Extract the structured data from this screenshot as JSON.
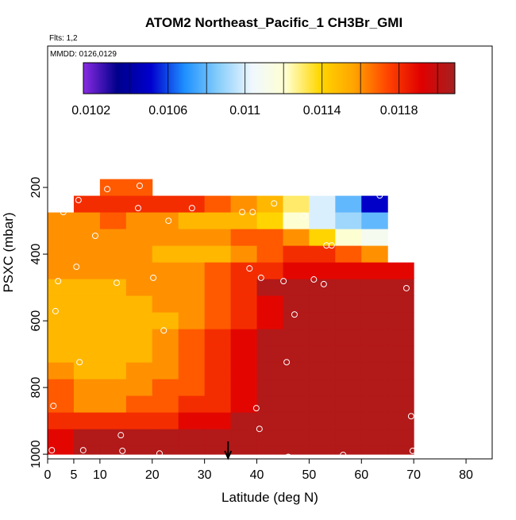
{
  "chart_data": {
    "type": "curtain",
    "title": "ATOM2 Northeast_Pacific_1 CH3Br_GMI",
    "flights": "Flts: 1,2",
    "dates": "MMDD: 0126,0129",
    "xlabel": "Latitude (deg N)",
    "ylabel": "PSXC (mbar)",
    "xlim": [
      0,
      85
    ],
    "xticks": [
      0,
      5,
      10,
      20,
      30,
      40,
      50,
      60,
      70,
      80
    ],
    "ylim": [
      1014,
      -224
    ],
    "yticks": [
      200,
      400,
      600,
      800,
      1000
    ],
    "clim": [
      0.01016,
      0.01209
    ],
    "cticks": [
      0.0102,
      0.0106,
      0.011,
      0.0114,
      0.0118
    ],
    "cbreaks": [
      0.0104,
      0.0106,
      0.0108,
      0.011,
      0.0112,
      0.0114,
      0.0116,
      0.0118,
      0.012
    ],
    "colors": [
      "#8a2be2",
      "#00008b",
      "#0000cd",
      "#1e90ff",
      "#87cefa",
      "#f0f8ff",
      "#ffffd0",
      "#ffd700",
      "#ffa500",
      "#ff4500",
      "#e00000",
      "#a52020"
    ],
    "lat_edges": [
      0,
      5,
      10,
      15,
      20,
      25,
      30,
      35,
      40,
      45,
      50,
      55,
      60,
      65,
      70
    ],
    "p_edges": [
      175,
      225,
      275,
      325,
      375,
      425,
      475,
      525,
      575,
      625,
      675,
      725,
      775,
      825,
      875,
      925,
      975,
      1000
    ],
    "values": [
      [
        null,
        null,
        0.0117,
        0.0117,
        null,
        null,
        null,
        null,
        null,
        null,
        null,
        null,
        null,
        null
      ],
      [
        null,
        0.0118,
        0.0118,
        0.0118,
        0.0118,
        0.0118,
        0.0117,
        0.0116,
        0.0115,
        0.0113,
        0.011,
        0.0108,
        0.0105,
        null
      ],
      [
        0.0116,
        0.0116,
        0.0117,
        0.0116,
        0.0116,
        0.0115,
        0.0115,
        0.0115,
        0.0114,
        0.0112,
        0.011,
        0.0109,
        0.0108,
        null
      ],
      [
        0.0116,
        0.0116,
        0.0116,
        0.0116,
        0.0116,
        0.0116,
        0.0116,
        0.0117,
        0.0117,
        0.0116,
        0.0114,
        0.0112,
        0.0111,
        null
      ],
      [
        0.0116,
        0.0116,
        0.0116,
        0.0116,
        0.0115,
        0.0115,
        0.0115,
        0.0116,
        0.0117,
        0.0118,
        0.0118,
        0.0117,
        0.0116,
        null
      ],
      [
        0.0116,
        0.0116,
        0.0116,
        0.0116,
        0.0116,
        0.0116,
        0.0117,
        0.0118,
        0.0118,
        0.0119,
        0.0119,
        0.0119,
        0.0119,
        0.0119
      ],
      [
        0.0115,
        0.0115,
        0.0115,
        0.0116,
        0.0116,
        0.0116,
        0.0117,
        0.0118,
        0.01205,
        0.01205,
        0.01205,
        0.01205,
        0.01205,
        0.01205
      ],
      [
        0.0115,
        0.0115,
        0.0115,
        0.0115,
        0.0116,
        0.0116,
        0.0117,
        0.0118,
        0.0119,
        0.01205,
        0.01205,
        0.01205,
        0.01205,
        0.01205
      ],
      [
        0.0115,
        0.0115,
        0.0115,
        0.0115,
        0.0115,
        0.0116,
        0.0117,
        0.0118,
        0.0119,
        0.01205,
        0.01205,
        0.01205,
        0.01205,
        0.01205
      ],
      [
        0.0115,
        0.0115,
        0.0115,
        0.0115,
        0.0116,
        0.0117,
        0.0118,
        0.0119,
        0.01205,
        0.01205,
        0.01205,
        0.01205,
        0.01205,
        0.01205
      ],
      [
        0.0115,
        0.0115,
        0.0115,
        0.0115,
        0.0116,
        0.0117,
        0.0118,
        0.0119,
        0.01205,
        0.01205,
        0.01205,
        0.01205,
        0.01205,
        0.01205
      ],
      [
        0.0116,
        0.0115,
        0.0115,
        0.0116,
        0.0116,
        0.0117,
        0.0118,
        0.0119,
        0.01205,
        0.01205,
        0.01205,
        0.01205,
        0.01205,
        0.01205
      ],
      [
        0.0117,
        0.0116,
        0.0116,
        0.0116,
        0.0117,
        0.0117,
        0.0118,
        0.0119,
        0.01205,
        0.01205,
        0.01205,
        0.01205,
        0.01205,
        0.01205
      ],
      [
        0.0117,
        0.0116,
        0.0116,
        0.0117,
        0.0117,
        0.0118,
        0.0118,
        0.0119,
        0.01205,
        0.01205,
        0.01205,
        0.01205,
        0.01205,
        0.01205
      ],
      [
        0.0118,
        0.0118,
        0.0118,
        0.0118,
        0.0118,
        0.0119,
        0.0119,
        0.01205,
        0.01205,
        0.01205,
        0.01205,
        0.01205,
        0.01205,
        0.01205
      ],
      [
        0.0119,
        0.01205,
        0.01205,
        0.01205,
        0.01205,
        0.01205,
        0.01205,
        0.01205,
        0.01205,
        0.01205,
        0.01205,
        0.01205,
        0.01205,
        0.01205
      ],
      [
        0.0119,
        0.01205,
        0.01205,
        0.01205,
        0.01205,
        0.01205,
        0.01205,
        0.01205,
        0.01205,
        0.01205,
        0.01205,
        0.01205,
        0.01205,
        0.01205
      ]
    ],
    "points": {
      "lat": [
        11.4,
        17.6,
        4.1,
        5.9,
        3.0,
        17.3,
        23.1,
        27.6,
        43.3,
        37.2,
        39.2,
        49.0,
        63.5,
        9.1,
        53.3,
        54.3,
        5.5,
        38.6,
        2.0,
        13.2,
        20.2,
        40.8,
        45.1,
        50.9,
        52.8,
        68.6,
        1.5,
        47.2,
        22.2,
        6.1,
        45.7,
        1.1,
        39.9,
        69.5,
        14.0,
        40.5,
        0.8,
        6.8,
        14.3,
        21.4,
        46.0,
        56.5,
        69.8
      ],
      "p": [
        205,
        195,
        238,
        238,
        274,
        262,
        300,
        262,
        248,
        274,
        274,
        286,
        224,
        345,
        374,
        374,
        438,
        443,
        481,
        486,
        471,
        471,
        481,
        476,
        490,
        502,
        571,
        581,
        629,
        724,
        724,
        855,
        862,
        886,
        943,
        924,
        988,
        988,
        990,
        998,
        1008,
        1002,
        990
      ]
    },
    "marker_lat": 34.5
  }
}
